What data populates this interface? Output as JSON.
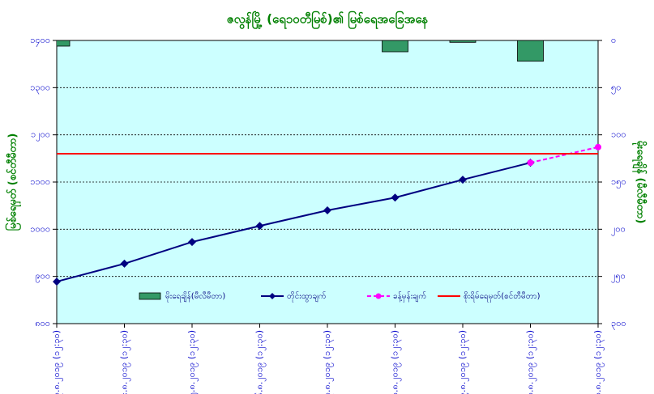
{
  "chart_data": {
    "type": "combo",
    "title": "ဇလွန်မြို့ (ရေ၁၀တီမြစ်)၏ မြစ်ရေအခြေအနေ",
    "ylabel": "မြစ်ရေမှတ် (စင်တီမီတာ)",
    "y2label": "မိုးရေချိန် (မီလီမီတာ)",
    "categories": [
      "၃.၈.၂၀၁၉ (၁၂:၃၀)",
      "၄.၈.၂၀၁၉ (၁၂:၃၀)",
      "၅.၈.၂၀၁၉ (၁၂:၃၀)",
      "၆.၈.၂၀၁၉ (၁၂:၃၀)",
      "၇.၈.၂၀၁၉ (၁၂:၃၀)",
      "၈.၈.၂၀၁၉ (၁၂:၃၀)",
      "၉.၈.၂၀၁၉ (၁၂:၃၀)",
      "၁၀.၈.၂၀၁၉ (၁၂:၃၀)",
      "၁၁.၈.၂၀၁၉ (၁၂:၃၀)"
    ],
    "ylim": [
      800,
      1400
    ],
    "yticks": [
      {
        "value": 800,
        "label": "၈၀၀"
      },
      {
        "value": 900,
        "label": "၉၀၀"
      },
      {
        "value": 1000,
        "label": "၁၀၀၀"
      },
      {
        "value": 1100,
        "label": "၁၁၀၀"
      },
      {
        "value": 1200,
        "label": "၁၂၀၀"
      },
      {
        "value": 1300,
        "label": "၁၃၀၀"
      },
      {
        "value": 1400,
        "label": "၁၄၀၀"
      }
    ],
    "y2lim": [
      300,
      0
    ],
    "y2ticks": [
      {
        "value": 0,
        "label": "၀"
      },
      {
        "value": 50,
        "label": "၅၀"
      },
      {
        "value": 100,
        "label": "၁၀၀"
      },
      {
        "value": 150,
        "label": "၁၅၀"
      },
      {
        "value": 200,
        "label": "၂၀၀"
      },
      {
        "value": 250,
        "label": "၂၅၀"
      },
      {
        "value": 300,
        "label": "၃၀၀"
      }
    ],
    "grid": true,
    "series": [
      {
        "name": "မိုးရေချိန်(မီလီမီတာ)",
        "type": "bar",
        "axis": "y2",
        "color": "#339966",
        "values": [
          6,
          0,
          0,
          0,
          0,
          12,
          2,
          22,
          null
        ]
      },
      {
        "name": "တိုင်းထွာချက်",
        "type": "line",
        "color": "#000080",
        "marker": "diamond",
        "values": [
          889,
          927,
          973,
          1007,
          1040,
          1067,
          1105,
          1141,
          null
        ]
      },
      {
        "name": "ခန့်မှန်းချက်",
        "type": "line",
        "dashed": true,
        "color": "#ff00ff",
        "marker": "circle",
        "values": [
          null,
          null,
          null,
          null,
          null,
          null,
          null,
          1141,
          1174
        ]
      }
    ],
    "reference_lines": [
      {
        "name": "စိုးရိမ်ရေမှတ်(စင်တီမီတာ)",
        "value": 1160,
        "color": "#ff0000"
      }
    ]
  }
}
